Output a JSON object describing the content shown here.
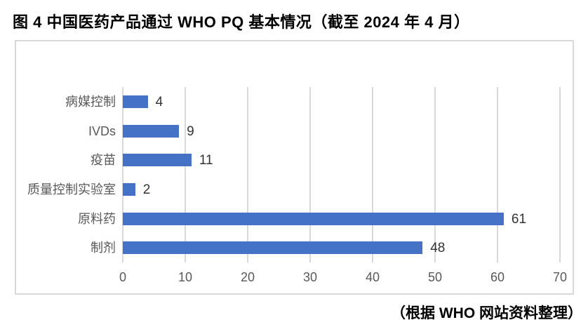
{
  "title": "图 4 中国医药产品通过 WHO PQ 基本情况（截至 2024 年 4 月）",
  "footer": "（根据 WHO 网站资料整理）",
  "colors": {
    "bar": "#4472c4",
    "gridline": "#d9d9d9",
    "frame_border": "#d9d9d9",
    "category_text": "#595959",
    "value_text": "#333333",
    "axis_text": "#595959",
    "title_text": "#000000"
  },
  "chart_data": {
    "type": "bar",
    "orientation": "horizontal",
    "title": "图 4 中国医药产品通过 WHO PQ 基本情况（截至 2024 年 4 月）",
    "source_note": "（根据 WHO 网站资料整理）",
    "categories": [
      "病媒控制",
      "IVDs",
      "疫苗",
      "质量控制实验室",
      "原料药",
      "制剂"
    ],
    "values": [
      4,
      9,
      11,
      2,
      61,
      48
    ],
    "xlabel": "",
    "ylabel": "",
    "xlim": [
      0,
      70
    ],
    "x_ticks": [
      0,
      10,
      20,
      30,
      40,
      50,
      60,
      70
    ],
    "grid": true,
    "data_labels": true,
    "legend": "none"
  }
}
